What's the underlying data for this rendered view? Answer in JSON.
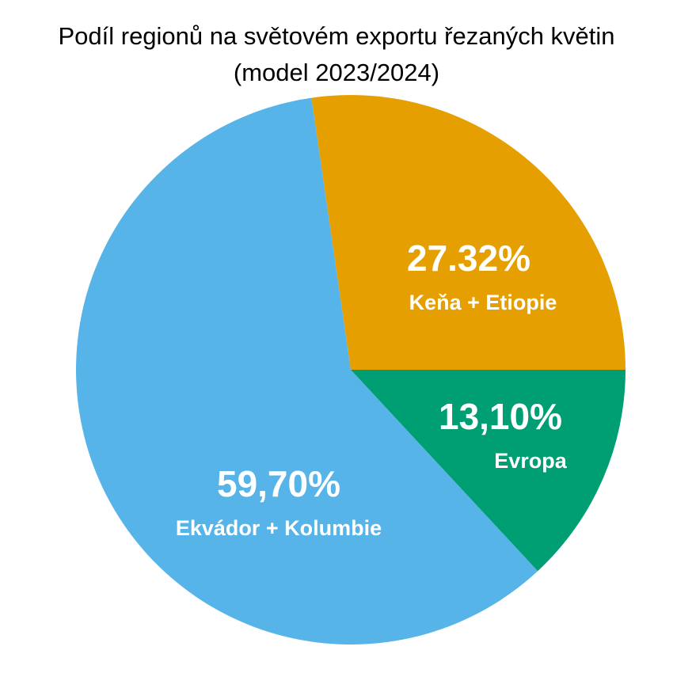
{
  "chart_data": {
    "type": "pie",
    "title": "Podíl regionů na světovém exportu řezaných květin",
    "subtitle": "(model 2023/2024)",
    "categories": [
      "Keňa + Etiopie",
      "Ekvádor + Kolumbie",
      "Evropa"
    ],
    "values": [
      27.32,
      59.7,
      13.1
    ],
    "value_labels": [
      "27.32%",
      "59,70%",
      "13,10%"
    ],
    "colors": [
      "#E69F00",
      "#56B4E9",
      "#009E73"
    ]
  }
}
